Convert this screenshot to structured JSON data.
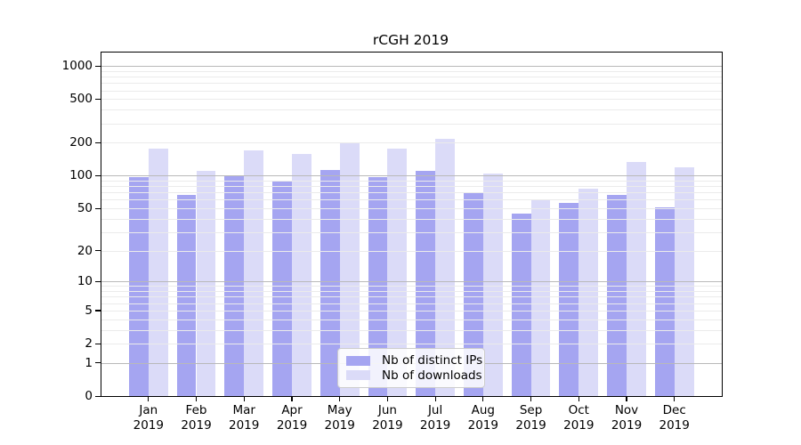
{
  "chart_data": {
    "type": "bar",
    "title": "rCGH 2019",
    "categories": [
      "Jan 2019",
      "Feb 2019",
      "Mar 2019",
      "Apr 2019",
      "May 2019",
      "Jun 2019",
      "Jul 2019",
      "Aug 2019",
      "Sep 2019",
      "Oct 2019",
      "Nov 2019",
      "Dec 2019"
    ],
    "month_labels": [
      "Jan",
      "Feb",
      "Mar",
      "Apr",
      "May",
      "Jun",
      "Jul",
      "Aug",
      "Sep",
      "Oct",
      "Nov",
      "Dec"
    ],
    "year": "2019",
    "series": [
      {
        "name": "Nb of distinct IPs",
        "color": "#a5a5f1",
        "values": [
          97,
          66,
          100,
          90,
          113,
          97,
          110,
          70,
          45,
          56,
          67,
          51
        ]
      },
      {
        "name": "Nb of downloads",
        "color": "#dbdbf8",
        "values": [
          177,
          110,
          171,
          157,
          200,
          177,
          216,
          105,
          61,
          76,
          134,
          119
        ]
      }
    ],
    "xlabel": "",
    "ylabel": "",
    "yscale": "log1p",
    "ylim": [
      0,
      1326
    ],
    "y_ticks": [
      0,
      1,
      2,
      5,
      10,
      20,
      50,
      100,
      200,
      500,
      1000
    ],
    "grid_major": [
      1,
      10,
      100,
      1000
    ],
    "grid_minor": [
      2,
      3,
      4,
      5,
      6,
      7,
      8,
      9,
      20,
      30,
      40,
      50,
      60,
      70,
      80,
      90,
      200,
      300,
      400,
      500,
      600,
      700,
      800,
      900
    ],
    "grid_major_color": "#b9b9b9",
    "grid_minor_color": "#ebebeb",
    "grid_on": true,
    "legend_position": "lower center",
    "background_color": "#ffffff",
    "spine_color": "#000000"
  }
}
